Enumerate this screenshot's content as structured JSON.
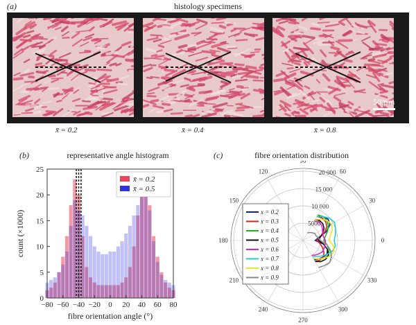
{
  "panel_a": {
    "label": "(a)",
    "title": "histology specimens",
    "scale_bar": "50 µm",
    "specimens": [
      {
        "caption": "x̄ = 0.2"
      },
      {
        "caption": "x̄ = 0.4"
      },
      {
        "caption": "x̄ = 0.8"
      }
    ]
  },
  "colors": {
    "red": "#e8475a",
    "blue": "#3333dd",
    "tissue_pink": "#d64a6e",
    "tissue_pale": "#e8c9c9"
  },
  "chart_data": [
    {
      "panel_label": "(b)",
      "type": "bar",
      "title": "representative angle histogram",
      "xlabel": "fibre orientation angle (°)",
      "ylabel": "count (×1000)",
      "xlim": [
        -80,
        80
      ],
      "ylim": [
        0,
        25
      ],
      "xticks": [
        "−80",
        "−60",
        "−40",
        "−20",
        "0",
        "20",
        "40",
        "60",
        "80"
      ],
      "yticks": [
        "0",
        "5",
        "10",
        "15",
        "20",
        "25"
      ],
      "legend_position": "top-right",
      "x": [
        -80,
        -75,
        -70,
        -65,
        -60,
        -55,
        -50,
        -45,
        -40,
        -35,
        -30,
        -25,
        -20,
        -15,
        -10,
        -5,
        0,
        5,
        10,
        15,
        20,
        25,
        30,
        35,
        40,
        45,
        50,
        55,
        60,
        65,
        70,
        75,
        80
      ],
      "series": [
        {
          "name": "x̄ = 0.2",
          "color": "#e8475a",
          "values": [
            1.5,
            2,
            3,
            5,
            8,
            12,
            18,
            23,
            20,
            12,
            6,
            4,
            3,
            2.5,
            2.5,
            2.5,
            2.5,
            2.5,
            2.5,
            3,
            4,
            6,
            10,
            16,
            21,
            22,
            18,
            12,
            8,
            5,
            3,
            2,
            1.5
          ]
        },
        {
          "name": "x̄ = 0.5",
          "color": "#3333dd",
          "values": [
            3,
            3.5,
            4,
            5,
            6.5,
            9,
            14,
            19,
            17,
            16,
            14,
            12,
            10,
            9,
            8.5,
            8.5,
            9,
            9,
            10,
            11,
            12.5,
            14,
            16,
            18,
            20,
            21,
            17,
            11,
            7,
            4.5,
            3.5,
            3,
            2.5
          ]
        }
      ],
      "vlines": [
        -43,
        -40,
        -37
      ]
    },
    {
      "panel_label": "(c)",
      "type": "line",
      "title": "fibre orientation distribution",
      "polar": true,
      "angle_ticks": [
        "0",
        "30",
        "60",
        "90",
        "120",
        "150",
        "180",
        "210",
        "240",
        "270",
        "300",
        "330"
      ],
      "radial_ticks": [
        "5000",
        "10 000",
        "15 000",
        "20 000"
      ],
      "rmax": 20000,
      "legend_position": "left",
      "angles": [
        -60,
        -50,
        -40,
        -30,
        -20,
        -10,
        0,
        10,
        20,
        30,
        40,
        50,
        60
      ],
      "series": [
        {
          "name": "x = 0.2",
          "color": "#1a1aa0",
          "values": [
            6500,
            7000,
            7500,
            8000,
            7500,
            6000,
            3500,
            4500,
            7000,
            9000,
            9500,
            9000,
            8000
          ]
        },
        {
          "name": "x = 0.3",
          "color": "#d42020",
          "values": [
            7000,
            7500,
            7500,
            7000,
            6000,
            5000,
            4000,
            5000,
            6500,
            8000,
            8500,
            8500,
            8000
          ]
        },
        {
          "name": "x = 0.4",
          "color": "#20b020",
          "values": [
            6000,
            7000,
            8000,
            8500,
            8000,
            7000,
            6000,
            6500,
            7500,
            8500,
            9000,
            9000,
            8500
          ]
        },
        {
          "name": "x = 0.5",
          "color": "#111111",
          "values": [
            7000,
            8000,
            8500,
            8500,
            7500,
            6000,
            4500,
            5000,
            6000,
            7000,
            7500,
            7500,
            7000
          ]
        },
        {
          "name": "x = 0.6",
          "color": "#e020c8",
          "values": [
            5000,
            5500,
            6000,
            6500,
            6500,
            6500,
            6500,
            6000,
            6000,
            6500,
            7000,
            7000,
            6500
          ]
        },
        {
          "name": "x = 0.7",
          "color": "#20d0d0",
          "values": [
            5500,
            6000,
            7000,
            8000,
            9000,
            9500,
            9000,
            9500,
            10000,
            10500,
            10000,
            9000,
            8000
          ]
        },
        {
          "name": "x = 0.8",
          "color": "#e8e820",
          "values": [
            6000,
            7000,
            8000,
            9000,
            9500,
            9000,
            7500,
            8000,
            9000,
            9500,
            9000,
            8000,
            7000
          ]
        },
        {
          "name": "x = 0.9",
          "color": "#888888",
          "values": [
            9000,
            9500,
            10000,
            9500,
            8500,
            7000,
            5000,
            4500,
            4000,
            4000,
            3500,
            3000,
            2500
          ]
        }
      ]
    }
  ]
}
